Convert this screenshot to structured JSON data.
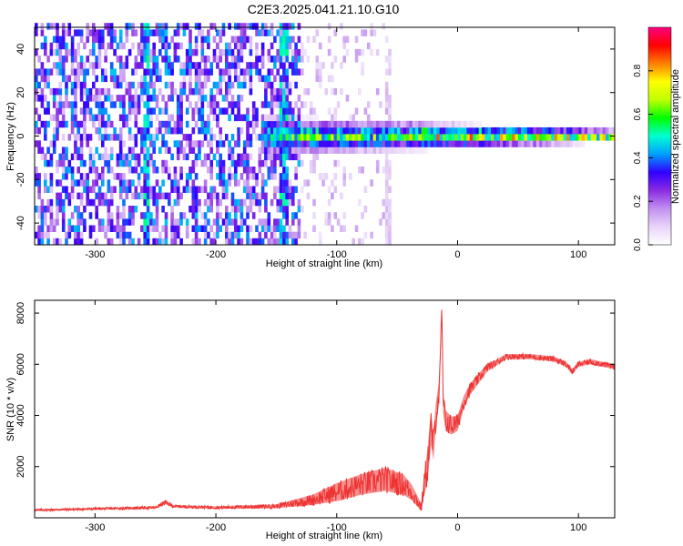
{
  "title": "C2E3.2025.041.21.10.G10",
  "chart_data": [
    {
      "type": "heatmap",
      "xlabel": "Height of straight line (km)",
      "ylabel": "Frequency (Hz)",
      "xlim": [
        -350,
        130
      ],
      "ylim": [
        -50,
        50
      ],
      "xticks": [
        -300,
        -200,
        -100,
        0,
        100
      ],
      "yticks": [
        -40,
        -20,
        0,
        20,
        40
      ],
      "colorbar": {
        "label": "Normalized spectral amplitude",
        "range": [
          0,
          1
        ],
        "ticks": [
          0.0,
          0.2,
          0.4,
          0.6,
          0.8
        ],
        "tick_labels": [
          "0.0",
          "0.2",
          "0.4",
          "0.6",
          "0.8"
        ],
        "colormap": [
          "#ffffff",
          "#e8d4f8",
          "#c090f0",
          "#8a2be2",
          "#3000ff",
          "#00a0ff",
          "#00ffd0",
          "#00ff00",
          "#c0ff00",
          "#ffff00",
          "#ff8000",
          "#ff0000",
          "#ff0080"
        ]
      },
      "features": [
        {
          "name": "broadband noise",
          "x_range": [
            -350,
            -130
          ],
          "y_range": [
            -50,
            50
          ],
          "level": 0.3
        },
        {
          "name": "sparse noise",
          "x_range": [
            -130,
            -55
          ],
          "y_range": [
            -50,
            50
          ],
          "level": 0.1
        },
        {
          "name": "vertical streak",
          "x": -258,
          "level": 0.45
        },
        {
          "name": "vertical streak",
          "x": -145,
          "level": 0.45
        },
        {
          "name": "vertical streak",
          "x": -58,
          "y_range": [
            -50,
            40
          ],
          "level": 0.1
        },
        {
          "name": "carrier line",
          "x_range": [
            -160,
            130
          ],
          "y_center": 0,
          "level": 0.7
        }
      ]
    },
    {
      "type": "line",
      "xlabel": "Height of straight line (km)",
      "ylabel": "SNR (10 * v/v)",
      "xlim": [
        -350,
        130
      ],
      "ylim": [
        0,
        8500
      ],
      "xticks": [
        -300,
        -200,
        -100,
        0,
        100
      ],
      "yticks": [
        2000,
        4000,
        6000,
        8000
      ],
      "color": "#ee3333",
      "series": [
        {
          "x": [
            -350,
            -300,
            -250,
            -242,
            -235,
            -200,
            -150,
            -120,
            -100,
            -80,
            -60,
            -45,
            -38,
            -30,
            -28,
            -25,
            -22,
            -20,
            -18,
            -15,
            -13,
            -12,
            -10,
            -5,
            0,
            5,
            10,
            15,
            20,
            25,
            30,
            40,
            60,
            80,
            90,
            95,
            100,
            110,
            120,
            130
          ],
          "y": [
            300,
            350,
            400,
            600,
            450,
            400,
            450,
            700,
            1000,
            1300,
            1500,
            1300,
            1000,
            400,
            1200,
            2000,
            3500,
            2800,
            4000,
            5000,
            8300,
            4500,
            3800,
            3600,
            3700,
            4500,
            5000,
            5300,
            5600,
            5900,
            6000,
            6300,
            6300,
            6200,
            6000,
            5700,
            6000,
            6100,
            6000,
            5900
          ],
          "band": [
            80,
            80,
            100,
            150,
            100,
            100,
            150,
            400,
            700,
            800,
            900,
            800,
            600,
            300,
            800,
            1300,
            1300,
            1100,
            1000,
            900,
            500,
            800,
            800,
            700,
            600,
            500,
            450,
            400,
            350,
            300,
            250,
            200,
            200,
            200,
            200,
            200,
            200,
            200,
            200,
            200
          ]
        }
      ]
    }
  ]
}
